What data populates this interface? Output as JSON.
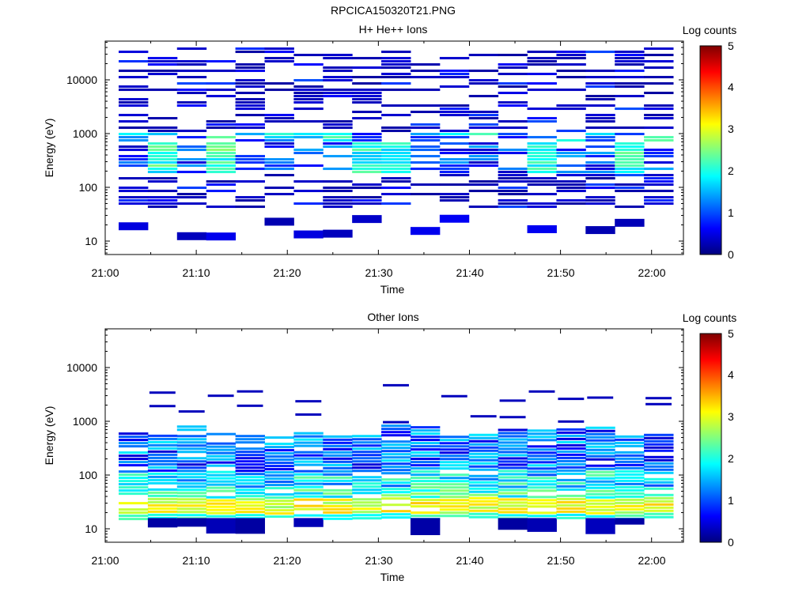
{
  "figure_title": "RPCICA150320T21.PNG",
  "chart_data": [
    {
      "type": "heatmap",
      "title": "H+ He++ Ions",
      "xlabel": "Time",
      "ylabel": "Energy (eV)",
      "x_tick_labels": [
        "21:00",
        "21:10",
        "21:20",
        "21:30",
        "21:40",
        "21:50",
        "22:00"
      ],
      "y_tick_labels": [
        "10",
        "100",
        "1000",
        "10000"
      ],
      "yscale": "log",
      "colorbar": {
        "label": "Log counts",
        "range": [
          0,
          5
        ],
        "tick_labels": [
          "0",
          "1",
          "2",
          "3",
          "4",
          "5"
        ],
        "colormap": "jet"
      }
    },
    {
      "type": "heatmap",
      "title": "Other Ions",
      "xlabel": "Time",
      "ylabel": "Energy (eV)",
      "x_tick_labels": [
        "21:00",
        "21:10",
        "21:20",
        "21:30",
        "21:40",
        "21:50",
        "22:00"
      ],
      "y_tick_labels": [
        "10",
        "100",
        "1000",
        "10000"
      ],
      "yscale": "log",
      "colorbar": {
        "label": "Log counts",
        "range": [
          0,
          5
        ],
        "tick_labels": [
          "0",
          "1",
          "2",
          "3",
          "4",
          "5"
        ],
        "colormap": "jet"
      }
    }
  ]
}
